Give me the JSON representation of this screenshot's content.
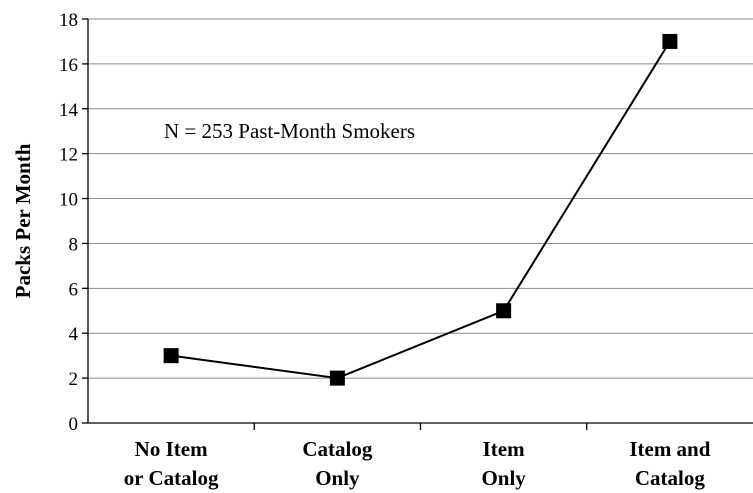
{
  "chart_data": {
    "type": "line",
    "categories": [
      [
        "No Item",
        "or Catalog"
      ],
      [
        "Catalog",
        "Only"
      ],
      [
        "Item",
        "Only"
      ],
      [
        "Item and",
        "Catalog"
      ]
    ],
    "series": [
      {
        "values": [
          3,
          2,
          5,
          17
        ],
        "color": "#000000"
      }
    ],
    "ylabel": "Packs Per Month",
    "xlabel": "",
    "ylim": [
      0,
      18
    ],
    "yticks": [
      0,
      2,
      4,
      6,
      8,
      10,
      12,
      14,
      16,
      18
    ],
    "annotation": "N = 253 Past-Month Smokers",
    "grid": true,
    "marker": "square"
  }
}
